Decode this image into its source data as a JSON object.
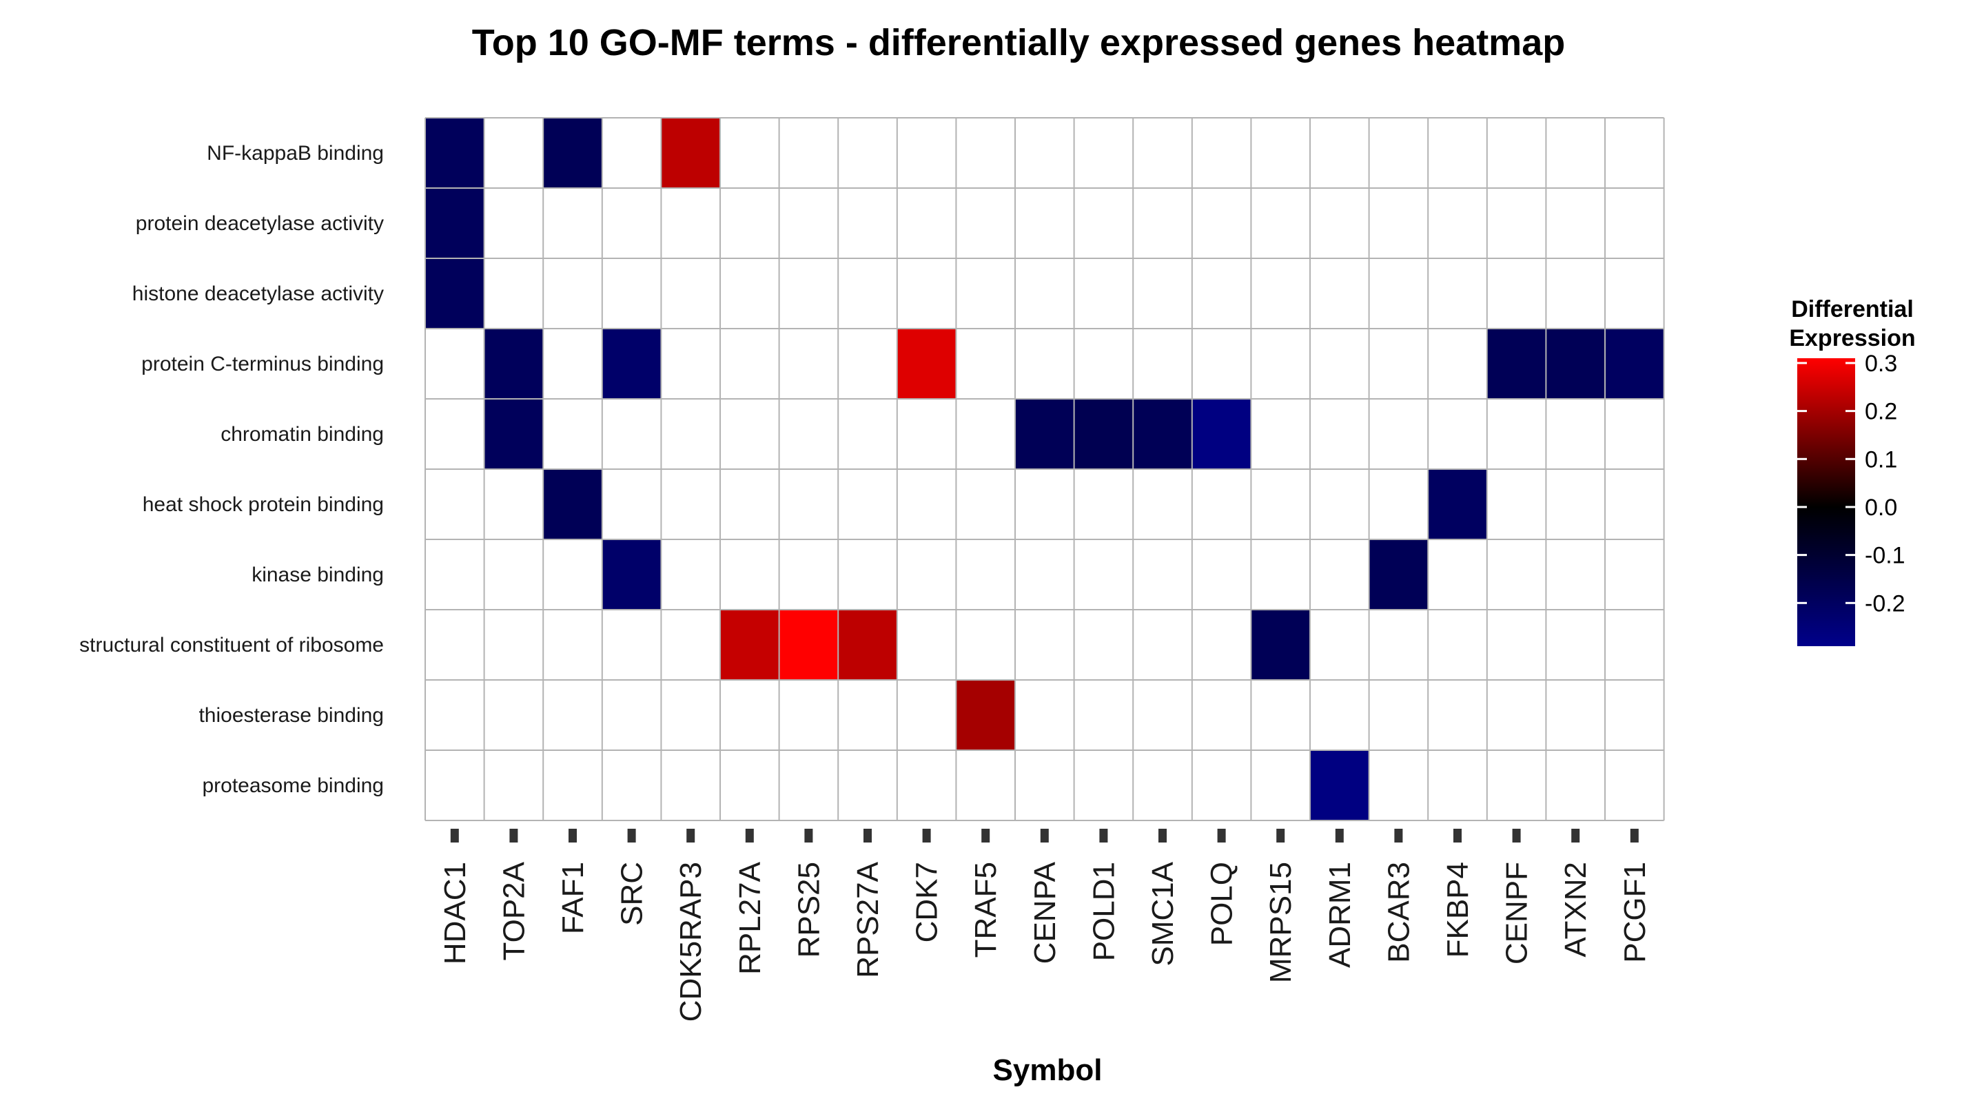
{
  "chart_data": {
    "type": "heatmap",
    "title": "Top 10 GO-MF terms - differentially expressed genes heatmap",
    "xlabel": "Symbol",
    "ylabel": "",
    "x_categories": [
      "HDAC1",
      "TOP2A",
      "FAF1",
      "SRC",
      "CDK5RAP3",
      "RPL27A",
      "RPS25",
      "RPS27A",
      "CDK7",
      "TRAF5",
      "CENPA",
      "POLD1",
      "SMC1A",
      "POLQ",
      "MRPS15",
      "ADRM1",
      "BCAR3",
      "FKBP4",
      "CENPF",
      "ATXN2",
      "PCGF1"
    ],
    "y_categories": [
      "NF-kappaB binding",
      "protein deacetylase activity",
      "histone deacetylase activity",
      "protein C-terminus binding",
      "chromatin binding",
      "heat shock protein binding",
      "kinase binding",
      "structural constituent of ribosome",
      "thioesterase binding",
      "proteasome binding"
    ],
    "cells": [
      {
        "term": "NF-kappaB binding",
        "symbol": "HDAC1",
        "value": -0.19
      },
      {
        "term": "NF-kappaB binding",
        "symbol": "FAF1",
        "value": -0.18
      },
      {
        "term": "NF-kappaB binding",
        "symbol": "CDK5RAP3",
        "value": 0.23
      },
      {
        "term": "protein deacetylase activity",
        "symbol": "HDAC1",
        "value": -0.19
      },
      {
        "term": "histone deacetylase activity",
        "symbol": "HDAC1",
        "value": -0.19
      },
      {
        "term": "protein C-terminus binding",
        "symbol": "TOP2A",
        "value": -0.19
      },
      {
        "term": "protein C-terminus binding",
        "symbol": "SRC",
        "value": -0.22
      },
      {
        "term": "protein C-terminus binding",
        "symbol": "CDK7",
        "value": 0.27
      },
      {
        "term": "protein C-terminus binding",
        "symbol": "CENPF",
        "value": -0.18
      },
      {
        "term": "protein C-terminus binding",
        "symbol": "ATXN2",
        "value": -0.18
      },
      {
        "term": "protein C-terminus binding",
        "symbol": "PCGF1",
        "value": -0.2
      },
      {
        "term": "chromatin binding",
        "symbol": "TOP2A",
        "value": -0.19
      },
      {
        "term": "chromatin binding",
        "symbol": "CENPA",
        "value": -0.18
      },
      {
        "term": "chromatin binding",
        "symbol": "POLD1",
        "value": -0.17
      },
      {
        "term": "chromatin binding",
        "symbol": "SMC1A",
        "value": -0.18
      },
      {
        "term": "chromatin binding",
        "symbol": "POLQ",
        "value": -0.27
      },
      {
        "term": "heat shock protein binding",
        "symbol": "FAF1",
        "value": -0.18
      },
      {
        "term": "heat shock protein binding",
        "symbol": "FKBP4",
        "value": -0.2
      },
      {
        "term": "kinase binding",
        "symbol": "SRC",
        "value": -0.22
      },
      {
        "term": "kinase binding",
        "symbol": "BCAR3",
        "value": -0.18
      },
      {
        "term": "structural constituent of ribosome",
        "symbol": "RPL27A",
        "value": 0.24
      },
      {
        "term": "structural constituent of ribosome",
        "symbol": "RPS25",
        "value": 0.31
      },
      {
        "term": "structural constituent of ribosome",
        "symbol": "RPS27A",
        "value": 0.23
      },
      {
        "term": "structural constituent of ribosome",
        "symbol": "MRPS15",
        "value": -0.18
      },
      {
        "term": "thioesterase binding",
        "symbol": "TRAF5",
        "value": 0.2
      },
      {
        "term": "proteasome binding",
        "symbol": "ADRM1",
        "value": -0.27
      }
    ],
    "legend": {
      "title_line1": "Differential",
      "title_line2": "Expression",
      "min": -0.29,
      "max": 0.31,
      "ticks": [
        0.3,
        0.2,
        0.1,
        0.0,
        -0.1,
        -0.2
      ],
      "tick_labels": [
        "0.3",
        "0.2",
        "0.1",
        "0.0",
        "-0.1",
        "-0.2"
      ],
      "placement": "right",
      "colors": {
        "low": "#00008b",
        "mid": "#000000",
        "high": "#ff0000"
      }
    },
    "empty_cell_color": "#ffffff",
    "grid_color": "#b3b3b3",
    "grid": true
  }
}
